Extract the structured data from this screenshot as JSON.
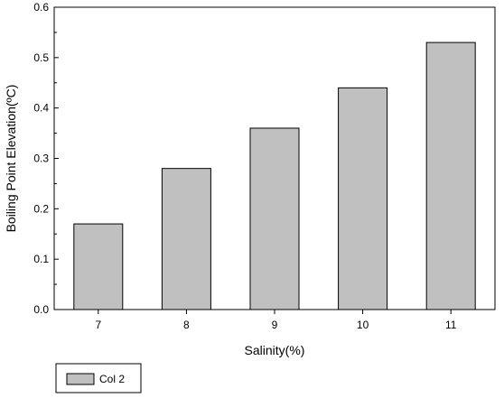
{
  "chart_data": {
    "type": "bar",
    "categories": [
      "7",
      "8",
      "9",
      "10",
      "11"
    ],
    "series": [
      {
        "name": "Col 2",
        "values": [
          0.17,
          0.28,
          0.36,
          0.44,
          0.53
        ]
      }
    ],
    "xlabel": "Salinity(%)",
    "ylabel": "Boiling Point Elevation(ºC)",
    "ylim": [
      0,
      0.6
    ],
    "yticks": [
      "0.0",
      "0.1",
      "0.2",
      "0.3",
      "0.4",
      "0.5",
      "0.6"
    ],
    "grid": false,
    "legend_position": "bottom-left",
    "bar_color": "#c0c0c0",
    "edge_color": "#000000"
  }
}
